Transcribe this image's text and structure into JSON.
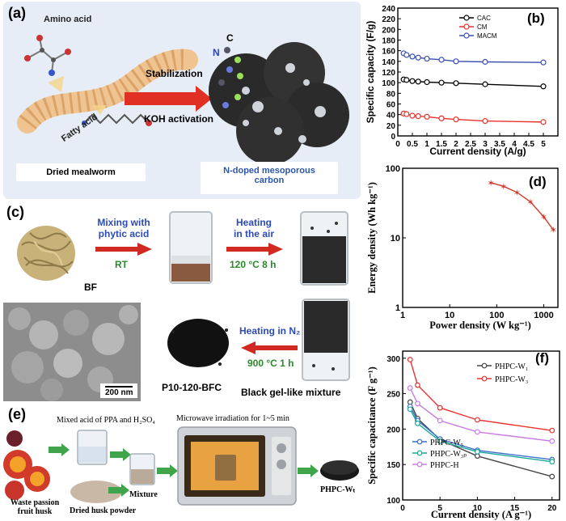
{
  "panel_a": {
    "tag": "(a)",
    "amino_acid": "Amino acid",
    "fatty_acid": "Fatty acid",
    "stabilization": "Stabilization",
    "koh_activation": "KOH activation",
    "atom_c": "C",
    "atom_n": "N",
    "dried_mealworm": "Dried mealworm",
    "product_line1": "N-doped mesoporous",
    "product_line2": "carbon"
  },
  "panel_c": {
    "tag": "(c)",
    "bf_label": "BF",
    "step1_line1": "Mixing with",
    "step1_line2": "phytic acid",
    "step1_cond": "RT",
    "step2_line1": "Heating",
    "step2_line2": "in the air",
    "step2_cond": "120 °C 8 h",
    "step3_line1": "Heating in N₂",
    "step3_cond": "900 °C 1 h",
    "scale_bar": "200 nm",
    "product_label": "P10-120-BFC",
    "mixture_label": "Black gel-like mixture"
  },
  "panel_e": {
    "tag": "(e)",
    "acid_label": "Mixed acid of PPA and  H₂SO₄",
    "microwave_label": "Microwave irradiation for 1~5 min",
    "waste_line1": "Waste passion",
    "waste_line2": "fruit husk",
    "dried_powder": "Dried husk powder",
    "mixture": "Mixture",
    "product": "PHPC-Wₜ"
  },
  "colors": {
    "black_series": "#000000",
    "red_series": "#e8312f",
    "blue_series": "#3c4fb0",
    "teal_series": "#1aa89a",
    "purple_series": "#c87be0",
    "panel_bg": "#e7edf6"
  },
  "chart_data": [
    {
      "panel": "(b)",
      "type": "line",
      "xlabel": "Current density (A/g)",
      "ylabel": "Specific capacity (F/g)",
      "xlim": [
        0,
        5.5
      ],
      "ylim": [
        0,
        240
      ],
      "xticks": [
        0,
        0.5,
        1,
        1.5,
        2,
        2.5,
        3,
        3.5,
        4,
        4.5,
        5
      ],
      "yticks": [
        0,
        20,
        40,
        60,
        80,
        100,
        120,
        140,
        160,
        180,
        200,
        220,
        240
      ],
      "legend": "top-right",
      "series": [
        {
          "name": "CAC",
          "color": "#000000",
          "x": [
            0.2,
            0.3,
            0.5,
            0.7,
            1,
            1.5,
            2,
            3,
            5
          ],
          "y": [
            106,
            105,
            103,
            102,
            101,
            100,
            99,
            97,
            93
          ]
        },
        {
          "name": "CM",
          "color": "#e8312f",
          "x": [
            0.2,
            0.3,
            0.5,
            0.7,
            1,
            1.5,
            2,
            3,
            5
          ],
          "y": [
            42,
            41,
            38,
            37,
            36,
            33,
            31,
            28,
            26
          ]
        },
        {
          "name": "MACM",
          "color": "#3c4fb0",
          "x": [
            0.2,
            0.3,
            0.5,
            0.7,
            1,
            1.5,
            2,
            3,
            5
          ],
          "y": [
            155,
            152,
            149,
            147,
            145,
            143,
            140,
            139,
            138
          ]
        }
      ]
    },
    {
      "panel": "(d)",
      "type": "line",
      "xlabel": "Power density (W kg⁻¹)",
      "ylabel": "Energy density (Wh kg⁻¹)",
      "xscale": "log",
      "yscale": "log",
      "xlim": [
        1,
        2000
      ],
      "ylim": [
        1,
        100
      ],
      "xticks": [
        1,
        10,
        100,
        1000
      ],
      "yticks": [
        1,
        10,
        100
      ],
      "series": [
        {
          "color": "#d23a2c",
          "x": [
            75,
            140,
            270,
            520,
            1000,
            1600
          ],
          "y": [
            62,
            55,
            45,
            33,
            20,
            13
          ]
        }
      ]
    },
    {
      "panel": "(f)",
      "type": "line",
      "xlabel": "Current density (A g⁻¹)",
      "ylabel": "Specific capacitance (F g⁻¹)",
      "xlim": [
        0,
        21
      ],
      "ylim": [
        100,
        310
      ],
      "xticks": [
        0,
        5,
        10,
        15,
        20
      ],
      "yticks": [
        100,
        150,
        200,
        250,
        300
      ],
      "series": [
        {
          "name": "PHPC-W₁",
          "color": "#444444",
          "x": [
            1,
            2,
            5,
            10,
            20
          ],
          "y": [
            238,
            215,
            185,
            162,
            133
          ]
        },
        {
          "name": "PHPC-W₃",
          "color": "#e8312f",
          "x": [
            1,
            2,
            5,
            10,
            20
          ],
          "y": [
            298,
            262,
            230,
            213,
            198
          ]
        },
        {
          "name": "PHPC-W₅",
          "color": "#3c6fc8",
          "x": [
            1,
            2,
            5,
            10,
            20
          ],
          "y": [
            232,
            212,
            186,
            170,
            157
          ]
        },
        {
          "name": "PHPC-W₃ₚ",
          "color": "#1aa89a",
          "x": [
            1,
            2,
            5,
            10,
            20
          ],
          "y": [
            228,
            208,
            183,
            168,
            154
          ]
        },
        {
          "name": "PHPC-H",
          "color": "#c87be0",
          "x": [
            1,
            2,
            5,
            10,
            20
          ],
          "y": [
            258,
            236,
            212,
            196,
            183
          ]
        }
      ]
    }
  ]
}
